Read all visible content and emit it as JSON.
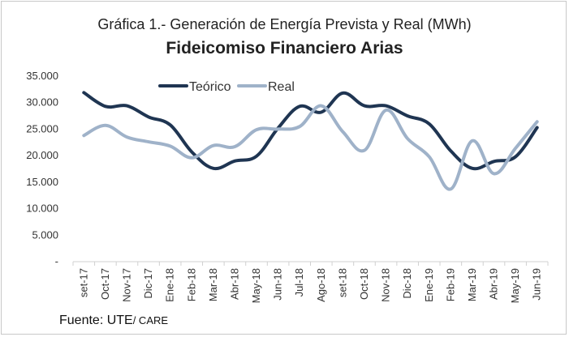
{
  "title": "Gráfica 1.- Generación de Energía Prevista y Real (MWh)",
  "subtitle": "Fideicomiso Financiero Arias",
  "source": {
    "label": "Fuente: UTE",
    "suffix": "/ CARE"
  },
  "colors": {
    "teorico": "#1f3552",
    "real": "#9fb2c9",
    "axis": "#d0d0d0"
  },
  "chart_data": {
    "type": "line",
    "title": "Fideicomiso Financiero Arias",
    "xlabel": "",
    "ylabel": "",
    "ylim": [
      0,
      35000
    ],
    "grid": false,
    "legend_position": "top-left",
    "y_ticks": [
      {
        "value": 0,
        "label": "-"
      },
      {
        "value": 5000,
        "label": "5.000"
      },
      {
        "value": 10000,
        "label": "10.000"
      },
      {
        "value": 15000,
        "label": "15.000"
      },
      {
        "value": 20000,
        "label": "20.000"
      },
      {
        "value": 25000,
        "label": "25.000"
      },
      {
        "value": 30000,
        "label": "30.000"
      },
      {
        "value": 35000,
        "label": "35.000"
      }
    ],
    "categories": [
      "set-17",
      "Oct-17",
      "Nov-17",
      "Dic-17",
      "Ene-18",
      "Feb-18",
      "Mar-18",
      "Abr-18",
      "May-18",
      "Jun-18",
      "Jul-18",
      "Ago-18",
      "set-18",
      "Oct-18",
      "Nov-18",
      "Dic-18",
      "Ene-19",
      "Feb-19",
      "Mar-19",
      "Abr-19",
      "May-19",
      "Jun-19"
    ],
    "series": [
      {
        "name": "Teórico",
        "color": "#1f3552",
        "values": [
          31900,
          29300,
          29400,
          27300,
          25800,
          20700,
          17600,
          19000,
          19900,
          25200,
          29300,
          28200,
          31800,
          29400,
          29400,
          27500,
          26000,
          20900,
          17600,
          18900,
          19800,
          25300
        ]
      },
      {
        "name": "Real",
        "color": "#9fb2c9",
        "values": [
          23800,
          25700,
          23500,
          22600,
          21800,
          19600,
          21900,
          21700,
          24900,
          25000,
          25500,
          29400,
          24500,
          21000,
          28600,
          23200,
          19800,
          13700,
          22800,
          16600,
          21400,
          26400
        ]
      }
    ]
  }
}
